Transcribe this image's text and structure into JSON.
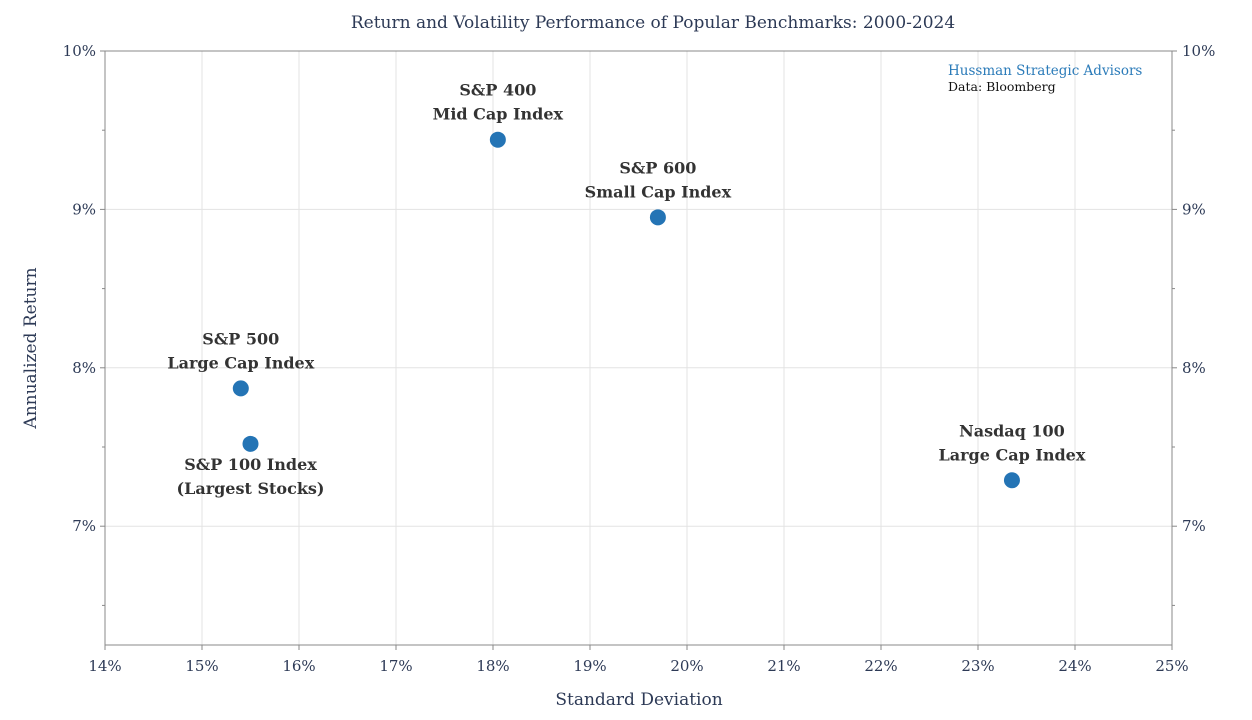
{
  "chart_data": {
    "type": "scatter",
    "title": "Return and Volatility Performance of Popular Benchmarks: 2000-2024",
    "xlabel": "Standard Deviation",
    "ylabel": "Annualized Return",
    "xlim": [
      14,
      25
    ],
    "ylim": [
      6.25,
      10
    ],
    "x_ticks": [
      14,
      15,
      16,
      17,
      18,
      19,
      20,
      21,
      22,
      23,
      24,
      25
    ],
    "x_tick_labels": [
      "14%",
      "15%",
      "16%",
      "17%",
      "18%",
      "19%",
      "20%",
      "21%",
      "22%",
      "23%",
      "24%",
      "25%"
    ],
    "y_ticks": [
      7,
      8,
      9,
      10
    ],
    "y_tick_labels": [
      "7%",
      "8%",
      "9%",
      "10%"
    ],
    "y_minor_ticks": [
      6.5,
      7.5,
      8.5,
      9.5
    ],
    "grid": true,
    "right_axis": true,
    "point_color": "#2474b5",
    "points": [
      {
        "x": 18.05,
        "y": 9.44,
        "label_lines": [
          "S&P 400",
          "Mid Cap Index"
        ],
        "label_position": "above"
      },
      {
        "x": 19.7,
        "y": 8.95,
        "label_lines": [
          "S&P 600",
          "Small Cap Index"
        ],
        "label_position": "above"
      },
      {
        "x": 15.4,
        "y": 7.87,
        "label_lines": [
          "S&P 500",
          "Large Cap Index"
        ],
        "label_position": "above"
      },
      {
        "x": 15.5,
        "y": 7.52,
        "label_lines": [
          "S&P 100 Index",
          "(Largest Stocks)"
        ],
        "label_position": "below"
      },
      {
        "x": 23.35,
        "y": 7.29,
        "label_lines": [
          "Nasdaq 100",
          "Large Cap Index"
        ],
        "label_position": "above"
      }
    ],
    "annotations": {
      "brand": "Hussman Strategic Advisors",
      "source": "Data: Bloomberg",
      "placement": "top-right"
    }
  }
}
